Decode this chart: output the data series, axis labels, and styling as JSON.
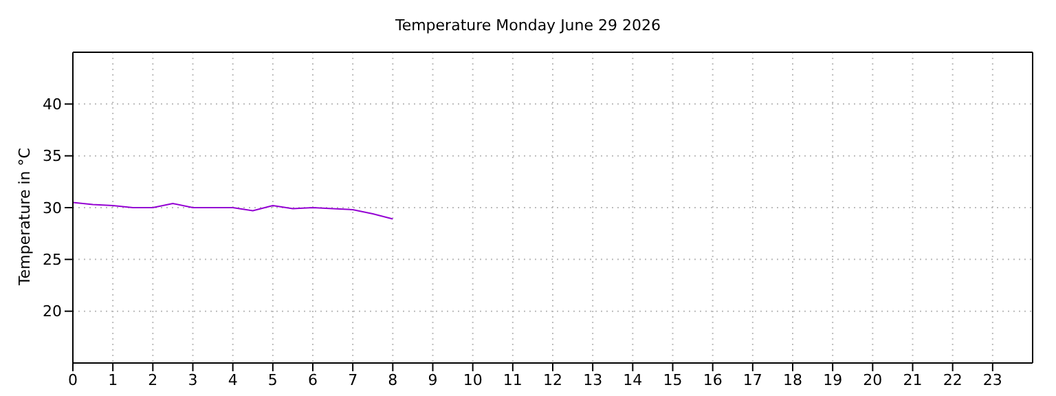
{
  "chart_data": {
    "type": "line",
    "title": "Temperature Monday June 29 2026",
    "ylabel": "Temperature in °C",
    "x": [
      0,
      0.5,
      1,
      1.5,
      2,
      2.5,
      3,
      3.5,
      4,
      4.5,
      5,
      5.5,
      6,
      6.5,
      7,
      7.5,
      8
    ],
    "series": [
      {
        "color": "#9400d3",
        "values": [
          30.5,
          30.3,
          30.2,
          30.0,
          30.0,
          30.4,
          30.0,
          30.0,
          30.0,
          29.7,
          30.2,
          29.9,
          30.0,
          29.9,
          29.8,
          29.4,
          28.9
        ]
      }
    ],
    "xlim": [
      0,
      24
    ],
    "xticks": [
      0,
      1,
      2,
      3,
      4,
      5,
      6,
      7,
      8,
      9,
      10,
      11,
      12,
      13,
      14,
      15,
      16,
      17,
      18,
      19,
      20,
      21,
      22,
      23
    ],
    "ylim": [
      15,
      45
    ],
    "yticks": [
      20,
      25,
      30,
      35,
      40
    ],
    "grid": true,
    "marker": "none",
    "line_style": "solid",
    "legend": false
  }
}
